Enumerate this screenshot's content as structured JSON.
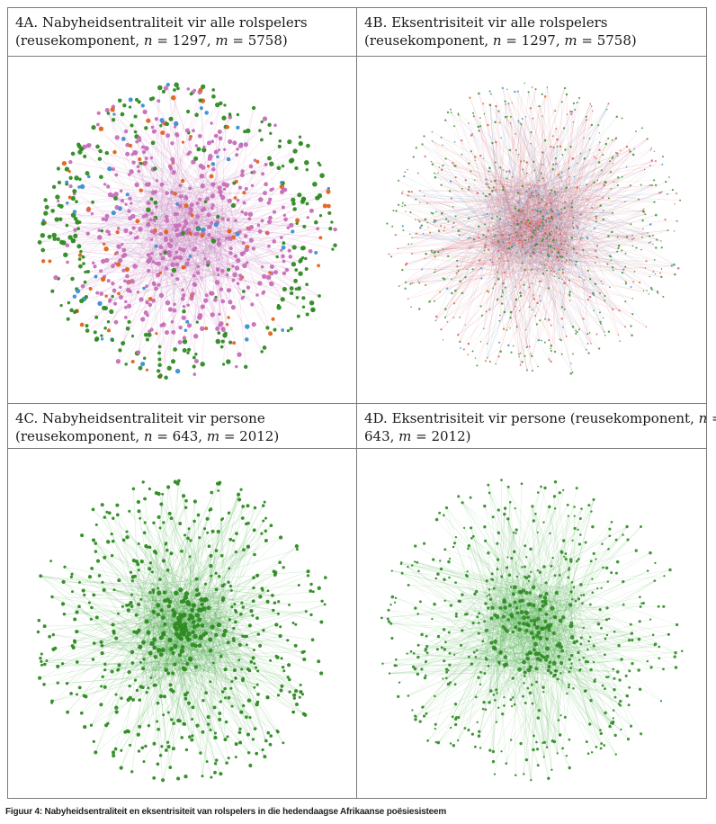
{
  "panels": [
    {
      "id": "4A",
      "title_line1": "4A. Nabyheidsentraliteit vir alle rolspelers",
      "title_line2_pre": "(reusekomponent, ",
      "n_label": "n",
      "n_value": " = 1297, ",
      "m_label": "m",
      "m_value": " = 5758)"
    },
    {
      "id": "4B",
      "title_line1": "4B. Eksentrisiteit vir alle rolspelers",
      "title_line2_pre": "(reusekomponent, ",
      "n_label": "n",
      "n_value": " = 1297, ",
      "m_label": "m",
      "m_value": " = 5758)"
    },
    {
      "id": "4C",
      "title_line1": "4C. Nabyheidsentraliteit vir persone",
      "title_line2_pre": "(reusekomponent, ",
      "n_label": "n",
      "n_value": " = 643, ",
      "m_label": "m",
      "m_value": " = 2012)"
    },
    {
      "id": "4D",
      "title_line1_pre": "4D. Eksentrisiteit vir persone (reusekomponent, ",
      "n_label": "n",
      "title_line1_post": " =",
      "title_line2_pre": "643, ",
      "m_label": "m",
      "m_value": " = 2012)"
    }
  ],
  "caption": "Figuur 4: Nabyheidsentraliteit en eksentrisiteit van rolspelers in die hedendaagse Afrikaanse poësiesisteem",
  "colors": {
    "border": "#7a7a7a",
    "green": "#2e8b22",
    "pink": "#c76fb8",
    "orange": "#e0641a",
    "blue": "#3b8fd4",
    "red_edges": "#d9525e",
    "edge_grey": "#a9a9b8",
    "edge_green": "#3aa53a"
  }
}
